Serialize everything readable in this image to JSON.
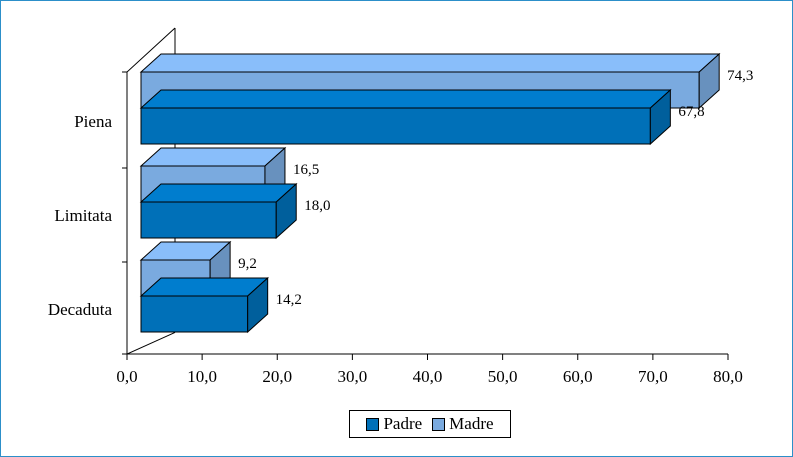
{
  "chart_data": {
    "type": "bar",
    "orientation": "horizontal",
    "three_d": true,
    "categories": [
      "Piena",
      "Limitata",
      "Decaduta"
    ],
    "series": [
      {
        "name": "Padre",
        "color": "#0070b8",
        "values": [
          67.8,
          18.0,
          14.2
        ],
        "labels": [
          "67,8",
          "18,0",
          "14,2"
        ]
      },
      {
        "name": "Madre",
        "color": "#7aaadf",
        "values": [
          74.3,
          16.5,
          9.2
        ],
        "labels": [
          "74,3",
          "16,5",
          "9,2"
        ]
      }
    ],
    "xlim": [
      0,
      80
    ],
    "x_ticks": [
      "0,0",
      "10,0",
      "20,0",
      "30,0",
      "40,0",
      "50,0",
      "60,0",
      "70,0",
      "80,0"
    ],
    "legend_position": "bottom-center",
    "grid": false
  }
}
